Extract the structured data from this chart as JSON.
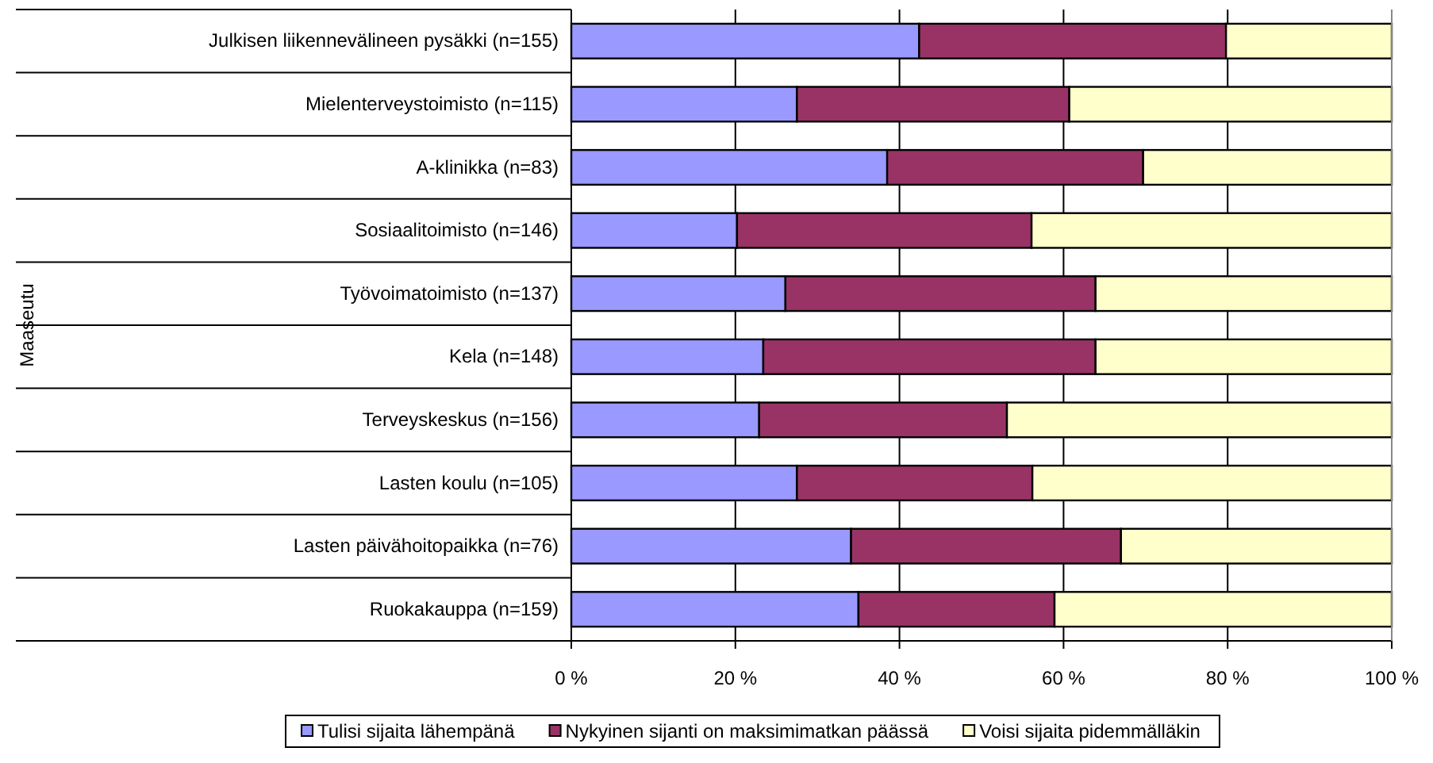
{
  "chart_data": {
    "type": "bar",
    "orientation": "horizontal",
    "stacked": true,
    "annotations": [
      "Maaseutu"
    ],
    "categories": [
      "Julkisen liikennevälineen  pysäkki (n=155)",
      "Mielenterveystoimisto (n=115)",
      "A-klinikka (n=83)",
      "Sosiaalitoimisto (n=146)",
      "Työvoimatoimisto (n=137)",
      "Kela (n=148)",
      "Terveyskeskus (n=156)",
      "Lasten koulu (n=105)",
      "Lasten päivähoitopaikka (n=76)",
      "Ruokakauppa (n=159)"
    ],
    "series": [
      {
        "name": "Tulisi sijaita lähempänä",
        "color": "#9999ff",
        "values": [
          42.4,
          27.5,
          38.5,
          20.2,
          26.1,
          23.4,
          22.9,
          27.5,
          34.1,
          35.0
        ]
      },
      {
        "name": "Nykyinen sijanti on maksimimatkan päässä",
        "color": "#993366",
        "values": [
          37.4,
          33.2,
          31.2,
          35.9,
          37.8,
          40.5,
          30.2,
          28.7,
          32.9,
          23.9
        ]
      },
      {
        "name": "Voisi sijaita pidemmälläkin",
        "color": "#ffffcc",
        "values": [
          20.2,
          39.3,
          30.3,
          43.9,
          36.1,
          36.1,
          46.9,
          43.8,
          33.0,
          41.1
        ]
      }
    ],
    "xlim": [
      0,
      100
    ],
    "xticks": [
      {
        "value": 0,
        "label": "0 %"
      },
      {
        "value": 20,
        "label": "20 %"
      },
      {
        "value": 40,
        "label": "40 %"
      },
      {
        "value": 60,
        "label": "60 %"
      },
      {
        "value": 80,
        "label": "80 %"
      },
      {
        "value": 100,
        "label": "100 %"
      }
    ],
    "grid": "x",
    "legend": "bottom"
  }
}
